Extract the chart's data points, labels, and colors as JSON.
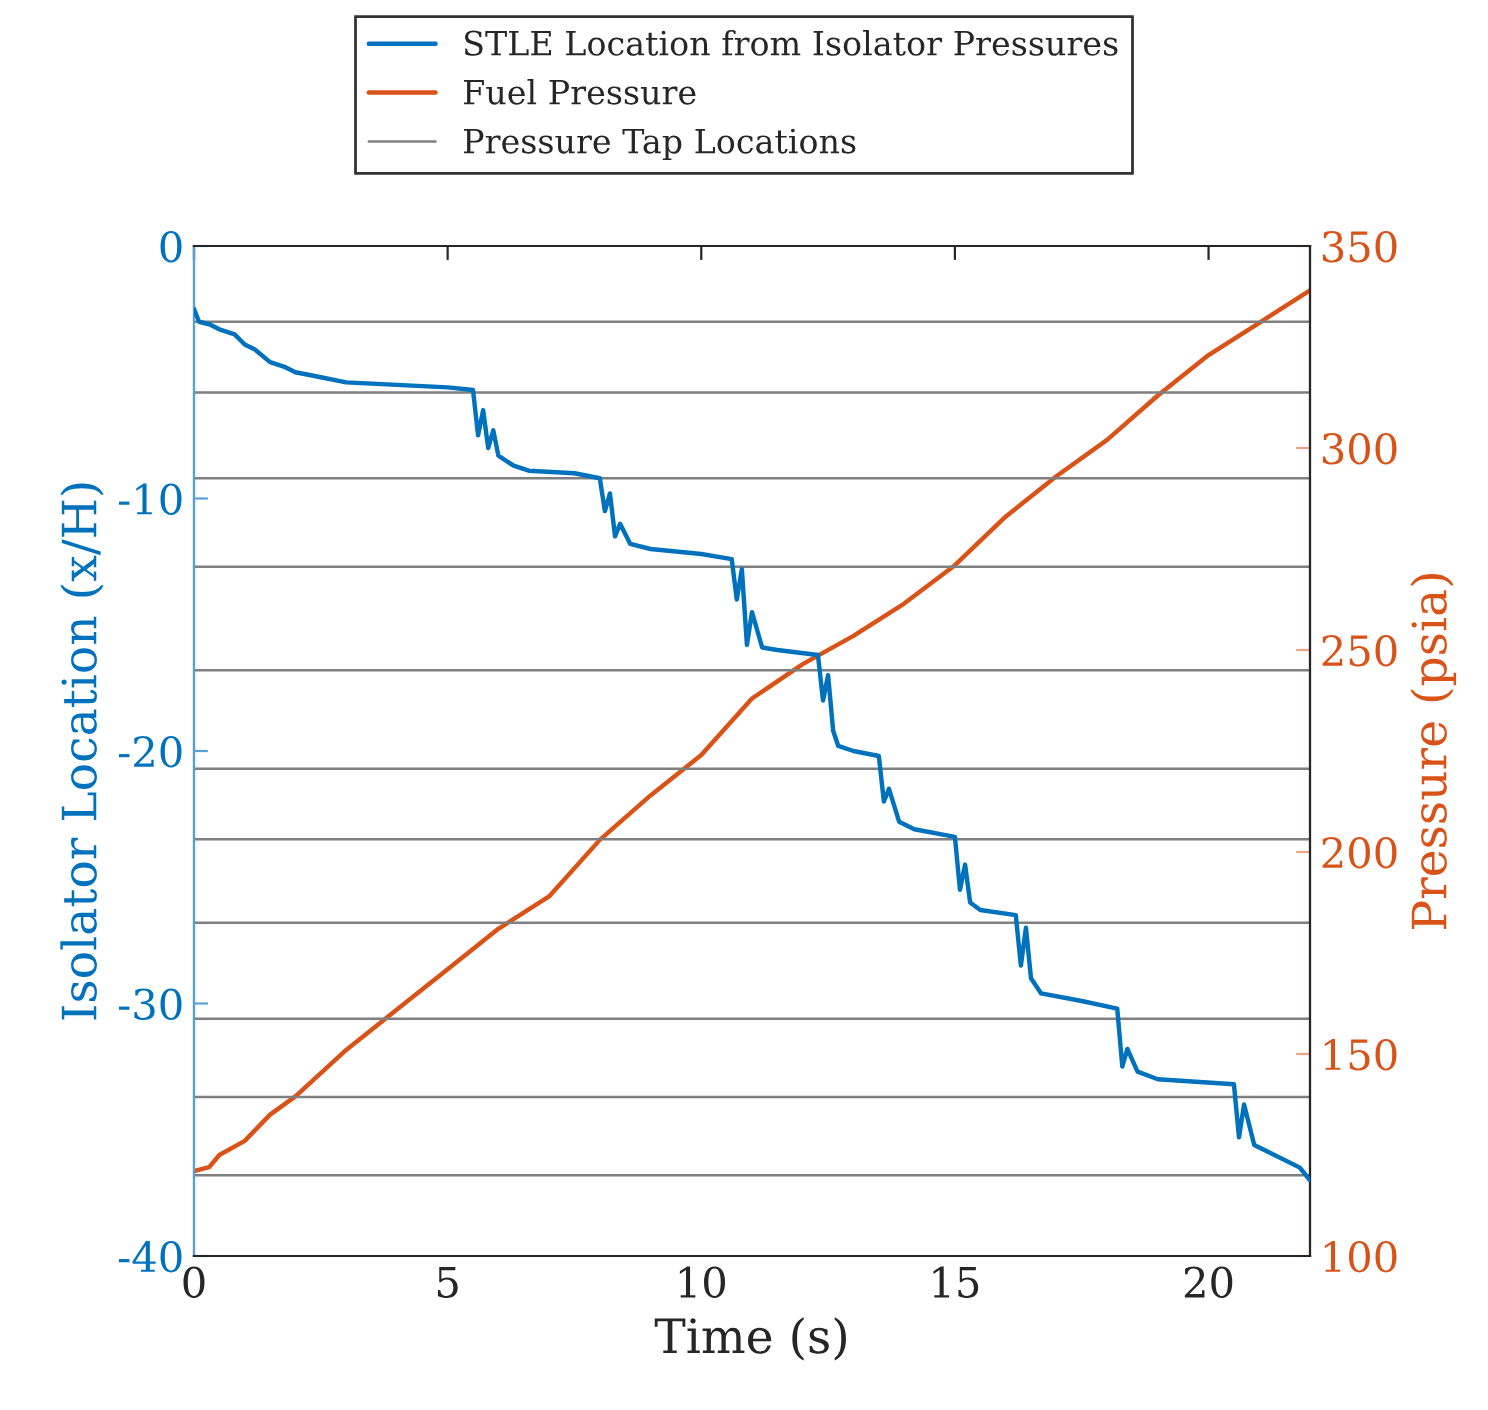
{
  "chart_data": {
    "type": "line",
    "xlabel": "Time (s)",
    "ylabel": "Isolator Location (x/H)",
    "y2label": "Pressure (psia)",
    "xlim": [
      0,
      22
    ],
    "xticks": [
      0,
      5,
      10,
      15,
      20
    ],
    "ylim": [
      -40,
      0
    ],
    "yticks": [
      0,
      -10,
      -20,
      -30,
      -40
    ],
    "y2lim": [
      100,
      350
    ],
    "y2ticks": [
      100,
      150,
      200,
      250,
      300,
      350
    ],
    "grid": false,
    "legend": "top",
    "line_style": "solid",
    "marker": "none",
    "series": [
      {
        "name": "STLE Location from Isolator Pressures",
        "color": "#0072bd",
        "x": [
          0,
          0.1,
          0.3,
          0.5,
          0.8,
          1.0,
          1.2,
          1.5,
          1.8,
          2.0,
          2.5,
          3.0,
          4.0,
          5.0,
          5.5,
          5.6,
          5.7,
          5.8,
          5.9,
          6.0,
          6.3,
          6.6,
          7.5,
          8.0,
          8.1,
          8.2,
          8.3,
          8.4,
          8.6,
          9.0,
          10.0,
          10.6,
          10.7,
          10.8,
          10.9,
          11.0,
          11.2,
          11.5,
          12.3,
          12.4,
          12.5,
          12.6,
          12.7,
          13.0,
          13.5,
          13.6,
          13.7,
          13.9,
          14.2,
          15.0,
          15.1,
          15.2,
          15.3,
          15.5,
          16.2,
          16.3,
          16.4,
          16.5,
          16.7,
          17.5,
          18.2,
          18.3,
          18.4,
          18.6,
          19.0,
          20.5,
          20.6,
          20.7,
          20.9,
          21.2,
          21.8,
          22.0
        ],
        "values": [
          -2.5,
          -3.0,
          -3.1,
          -3.3,
          -3.5,
          -3.9,
          -4.1,
          -4.6,
          -4.8,
          -5.0,
          -5.2,
          -5.4,
          -5.5,
          -5.6,
          -5.7,
          -7.5,
          -6.5,
          -8.0,
          -7.3,
          -8.3,
          -8.7,
          -8.9,
          -9.0,
          -9.2,
          -10.5,
          -9.8,
          -11.5,
          -11.0,
          -11.8,
          -12.0,
          -12.2,
          -12.4,
          -14.0,
          -12.8,
          -15.8,
          -14.5,
          -15.9,
          -16.0,
          -16.2,
          -18.0,
          -17.0,
          -19.2,
          -19.8,
          -20.0,
          -20.2,
          -22.0,
          -21.5,
          -22.8,
          -23.1,
          -23.4,
          -25.5,
          -24.5,
          -26.0,
          -26.3,
          -26.5,
          -28.5,
          -27.0,
          -29.0,
          -29.6,
          -29.9,
          -30.2,
          -32.5,
          -31.8,
          -32.7,
          -33.0,
          -33.2,
          -35.3,
          -34.0,
          -35.6,
          -35.9,
          -36.5,
          -37.0
        ]
      },
      {
        "name": "Fuel Pressure",
        "color": "#d95319",
        "axis": "y2",
        "x": [
          0,
          0.3,
          0.5,
          1.0,
          1.5,
          2.0,
          3.0,
          4.0,
          5.0,
          6.0,
          7.0,
          8.0,
          9.0,
          10.0,
          11.0,
          12.0,
          13.0,
          14.0,
          15.0,
          16.0,
          17.0,
          18.0,
          19.0,
          20.0,
          21.0,
          22.0
        ],
        "values": [
          121,
          122,
          125,
          128.5,
          135,
          139.5,
          151,
          161,
          171,
          181,
          189,
          203,
          214,
          224,
          238,
          246.5,
          253.5,
          261.5,
          271,
          283,
          293,
          302,
          313,
          323,
          331,
          339
        ]
      }
    ],
    "ref_lines": [
      {
        "axis": "y",
        "value": -3.0,
        "label": "Pressure Tap Locations",
        "color": "#7f7f7f"
      },
      {
        "axis": "y",
        "value": -5.8,
        "color": "#7f7f7f"
      },
      {
        "axis": "y",
        "value": -9.2,
        "color": "#7f7f7f"
      },
      {
        "axis": "y",
        "value": -12.7,
        "color": "#7f7f7f"
      },
      {
        "axis": "y",
        "value": -16.8,
        "color": "#7f7f7f"
      },
      {
        "axis": "y",
        "value": -20.7,
        "color": "#7f7f7f"
      },
      {
        "axis": "y",
        "value": -23.5,
        "color": "#7f7f7f"
      },
      {
        "axis": "y",
        "value": -26.8,
        "color": "#7f7f7f"
      },
      {
        "axis": "y",
        "value": -30.6,
        "color": "#7f7f7f"
      },
      {
        "axis": "y",
        "value": -33.7,
        "color": "#7f7f7f"
      },
      {
        "axis": "y",
        "value": -36.8,
        "color": "#7f7f7f"
      }
    ]
  }
}
